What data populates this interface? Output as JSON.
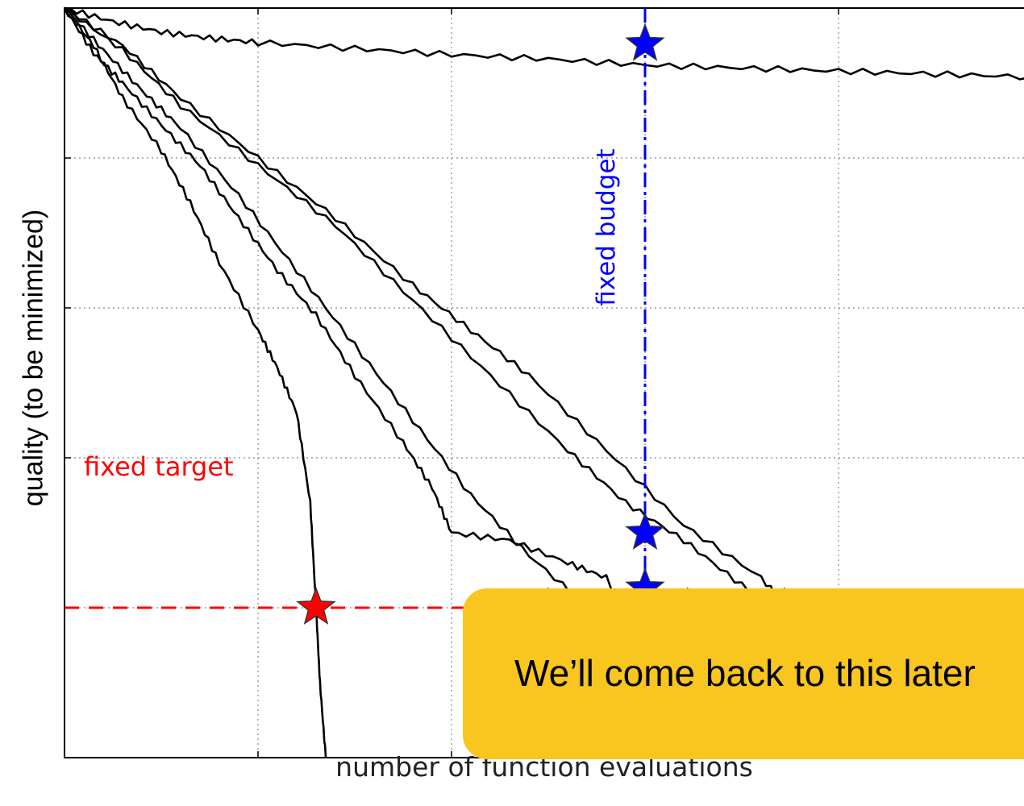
{
  "chart_data": {
    "type": "line",
    "xlabel": "number of function evaluations",
    "ylabel": "quality (to be minimized)",
    "xlim": [
      0,
      5
    ],
    "ylim": [
      0,
      5
    ],
    "grid": true,
    "tick_labels_shown": false,
    "series": [
      {
        "x": [
          0,
          0.25,
          0.5,
          0.75,
          1,
          1.5,
          2,
          2.5,
          3,
          3.5,
          4,
          4.5,
          5
        ],
        "y": [
          5,
          4.91,
          4.84,
          4.8,
          4.77,
          4.73,
          4.69,
          4.66,
          4.62,
          4.6,
          4.58,
          4.56,
          4.54
        ]
      },
      {
        "x": [
          0,
          0.15,
          0.3,
          0.5,
          0.7,
          0.9,
          1.1,
          1.3,
          1.5,
          1.75,
          1.9,
          2.0,
          2.3,
          2.6,
          2.8,
          3.2
        ],
        "y": [
          5,
          4.7,
          4.5,
          4.22,
          3.95,
          3.6,
          3.25,
          2.95,
          2.55,
          2.1,
          1.8,
          1.5,
          1.45,
          1.3,
          1.2,
          0
        ]
      },
      {
        "x": [
          0,
          0.15,
          0.3,
          0.5,
          0.65,
          0.8,
          1.0,
          1.1,
          1.2,
          1.27,
          1.3,
          1.32,
          1.35
        ],
        "y": [
          5,
          4.75,
          4.4,
          4.05,
          3.7,
          3.3,
          2.85,
          2.6,
          2.3,
          1.7,
          1.0,
          0.5,
          0
        ]
      },
      {
        "x": [
          0,
          0.2,
          0.4,
          0.6,
          0.9,
          1.2,
          1.5,
          1.8,
          2.1,
          2.4,
          2.75,
          3.0
        ],
        "y": [
          5,
          4.72,
          4.45,
          4.2,
          3.75,
          3.25,
          2.75,
          2.25,
          1.75,
          1.35,
          0.95,
          0.9
        ]
      },
      {
        "x": [
          0,
          0.3,
          0.6,
          1.0,
          1.4,
          1.8,
          2.2,
          2.6,
          2.9,
          3.2,
          3.5,
          3.9,
          4.3,
          4.5
        ],
        "y": [
          5,
          4.72,
          4.35,
          3.95,
          3.55,
          3.05,
          2.55,
          2.05,
          1.7,
          1.45,
          1.15,
          0.7,
          0.2,
          0
        ]
      },
      {
        "x": [
          0,
          0.3,
          0.6,
          1.0,
          1.4,
          1.8,
          2.1,
          2.4,
          2.8,
          3.2,
          3.6,
          3.8,
          4.1,
          4.3,
          4.5
        ],
        "y": [
          5,
          4.75,
          4.4,
          4.0,
          3.6,
          3.15,
          2.85,
          2.55,
          2.05,
          1.55,
          1.2,
          0.9,
          0.55,
          0.45,
          0.45
        ]
      }
    ],
    "target_line": {
      "y": 1.0,
      "color": "#ff0000"
    },
    "budget_line": {
      "x": 3.0,
      "color": "#0000ff"
    },
    "target_markers": [
      {
        "x": 1.3,
        "y": 1.0
      },
      {
        "x": 2.5,
        "y": 1.0
      },
      {
        "x": 3.22,
        "y": 1.0
      },
      {
        "x": 3.72,
        "y": 1.0
      }
    ],
    "budget_markers": [
      {
        "x": 3.0,
        "y": 4.76
      },
      {
        "x": 3.0,
        "y": 1.5
      },
      {
        "x": 3.0,
        "y": 1.13
      },
      {
        "x": 3.0,
        "y": 0.45
      }
    ],
    "annotations": {
      "target": "fixed target",
      "budget": "fixed budget"
    }
  },
  "callout": {
    "text": "We’ll come back to this later",
    "color": "#f8c61e"
  }
}
